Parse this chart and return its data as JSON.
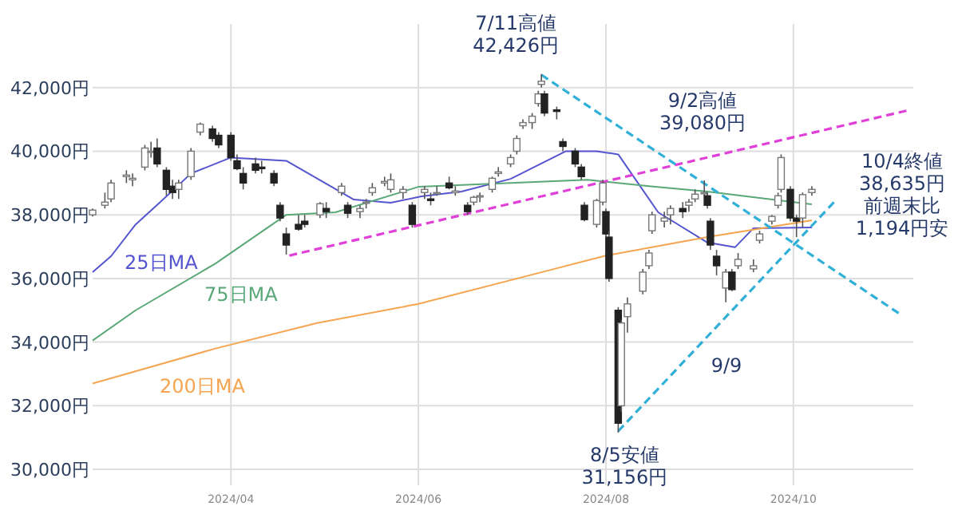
{
  "chart_data": {
    "type": "candlestick",
    "x": [
      "2024-02-16",
      "2024-02-20",
      "2024-02-22",
      "2024-02-27",
      "2024-02-29",
      "2024-03-04",
      "2024-03-06",
      "2024-03-08",
      "2024-03-11",
      "2024-03-13",
      "2024-03-15",
      "2024-03-19",
      "2024-03-22",
      "2024-03-26",
      "2024-03-28",
      "2024-04-01",
      "2024-04-03",
      "2024-04-05",
      "2024-04-09",
      "2024-04-11",
      "2024-04-15",
      "2024-04-17",
      "2024-04-19",
      "2024-04-23",
      "2024-04-25",
      "2024-04-30",
      "2024-05-02",
      "2024-05-07",
      "2024-05-09",
      "2024-05-13",
      "2024-05-15",
      "2024-05-17",
      "2024-05-21",
      "2024-05-23",
      "2024-05-27",
      "2024-05-30",
      "2024-06-03",
      "2024-06-05",
      "2024-06-07",
      "2024-06-11",
      "2024-06-13",
      "2024-06-17",
      "2024-06-19",
      "2024-06-21",
      "2024-06-25",
      "2024-06-27",
      "2024-07-01",
      "2024-07-03",
      "2024-07-05",
      "2024-07-08",
      "2024-07-10",
      "2024-07-11",
      "2024-07-12",
      "2024-07-16",
      "2024-07-18",
      "2024-07-22",
      "2024-07-24",
      "2024-07-25",
      "2024-07-29",
      "2024-07-31",
      "2024-08-01",
      "2024-08-02",
      "2024-08-05",
      "2024-08-06",
      "2024-08-08",
      "2024-08-13",
      "2024-08-15",
      "2024-08-16",
      "2024-08-20",
      "2024-08-22",
      "2024-08-26",
      "2024-08-28",
      "2024-08-30",
      "2024-09-02",
      "2024-09-03",
      "2024-09-04",
      "2024-09-06",
      "2024-09-09",
      "2024-09-11",
      "2024-09-13",
      "2024-09-18",
      "2024-09-20",
      "2024-09-24",
      "2024-09-26",
      "2024-09-27",
      "2024-09-30",
      "2024-10-02",
      "2024-10-04",
      "2024-10-07"
    ],
    "ohlc": [
      [
        38000,
        38200,
        37950,
        38150
      ],
      [
        38300,
        38700,
        38200,
        38400
      ],
      [
        38500,
        39100,
        38400,
        39000
      ],
      [
        39200,
        39400,
        39000,
        39250
      ],
      [
        39100,
        39300,
        38900,
        39150
      ],
      [
        39500,
        40200,
        39400,
        40100
      ],
      [
        40000,
        40300,
        39800,
        40000
      ],
      [
        40100,
        40400,
        39500,
        39600
      ],
      [
        39400,
        39500,
        38600,
        38800
      ],
      [
        38900,
        39100,
        38500,
        38700
      ],
      [
        38800,
        39100,
        38500,
        39000
      ],
      [
        39200,
        40100,
        39100,
        40000
      ],
      [
        40600,
        40900,
        40500,
        40850
      ],
      [
        40700,
        40800,
        40300,
        40400
      ],
      [
        40500,
        40600,
        40100,
        40200
      ],
      [
        40500,
        40600,
        39700,
        39800
      ],
      [
        39700,
        39900,
        39400,
        39450
      ],
      [
        39300,
        39500,
        38800,
        39000
      ],
      [
        39600,
        39800,
        39300,
        39400
      ],
      [
        39500,
        39700,
        39300,
        39450
      ],
      [
        39300,
        39400,
        38900,
        39000
      ],
      [
        38300,
        38400,
        37800,
        37900
      ],
      [
        37400,
        37600,
        36750,
        37050
      ],
      [
        37700,
        38000,
        37500,
        37550
      ],
      [
        37800,
        38000,
        37600,
        37700
      ],
      [
        38000,
        38400,
        37900,
        38350
      ],
      [
        38200,
        38400,
        37900,
        38100
      ],
      [
        38700,
        39000,
        38600,
        38900
      ],
      [
        38300,
        38400,
        37900,
        38050
      ],
      [
        38100,
        38300,
        37900,
        38200
      ],
      [
        38400,
        38500,
        38200,
        38400
      ],
      [
        38700,
        39000,
        38600,
        38850
      ],
      [
        39000,
        39200,
        38900,
        39050
      ],
      [
        38800,
        39300,
        38700,
        39100
      ],
      [
        38700,
        38900,
        38500,
        38800
      ],
      [
        38300,
        38400,
        37600,
        37700
      ],
      [
        38700,
        38900,
        38500,
        38800
      ],
      [
        38500,
        38700,
        38300,
        38450
      ],
      [
        38700,
        38900,
        38600,
        38700
      ],
      [
        39000,
        39200,
        38800,
        38850
      ],
      [
        38700,
        38900,
        38600,
        38750
      ],
      [
        38300,
        38400,
        38000,
        38100
      ],
      [
        38400,
        38600,
        38300,
        38550
      ],
      [
        38600,
        38700,
        38400,
        38600
      ],
      [
        38800,
        39200,
        38700,
        39150
      ],
      [
        39300,
        39500,
        39200,
        39350
      ],
      [
        39600,
        39900,
        39500,
        39800
      ],
      [
        40000,
        40500,
        39900,
        40400
      ],
      [
        40800,
        41000,
        40700,
        40900
      ],
      [
        40900,
        41200,
        40700,
        41100
      ],
      [
        41500,
        41900,
        41400,
        41800
      ],
      [
        42100,
        42426,
        42000,
        42200
      ],
      [
        41800,
        41900,
        41100,
        41200
      ],
      [
        41300,
        41400,
        41000,
        41250
      ],
      [
        40300,
        40400,
        40000,
        40150
      ],
      [
        40000,
        40100,
        39500,
        39600
      ],
      [
        39500,
        39600,
        39100,
        39200
      ],
      [
        38300,
        38400,
        37800,
        37850
      ],
      [
        37700,
        38500,
        37600,
        38450
      ],
      [
        38400,
        39100,
        38300,
        39000
      ],
      [
        38100,
        38200,
        37300,
        37400
      ],
      [
        37300,
        37500,
        35900,
        36000
      ],
      [
        35000,
        35100,
        31156,
        31450
      ],
      [
        32000,
        34700,
        31800,
        34600
      ],
      [
        34800,
        35400,
        34300,
        35200
      ],
      [
        35600,
        36300,
        35500,
        36200
      ],
      [
        36400,
        36900,
        36300,
        36800
      ],
      [
        37500,
        38100,
        37400,
        38000
      ],
      [
        37800,
        38100,
        37600,
        37900
      ],
      [
        38000,
        38300,
        37700,
        38200
      ],
      [
        38200,
        38400,
        37900,
        38100
      ],
      [
        38300,
        38500,
        38100,
        38400
      ],
      [
        38500,
        38800,
        38400,
        38650
      ],
      [
        38700,
        39080,
        38600,
        38700
      ],
      [
        38600,
        38700,
        38200,
        38300
      ],
      [
        37800,
        37900,
        36900,
        37050
      ],
      [
        36700,
        36900,
        36100,
        36400
      ],
      [
        35700,
        36300,
        35250,
        36200
      ],
      [
        36200,
        36300,
        35600,
        35650
      ],
      [
        36400,
        36800,
        36300,
        36600
      ],
      [
        36300,
        36600,
        36200,
        36400
      ],
      [
        37200,
        37500,
        37100,
        37400
      ],
      [
        37800,
        38000,
        37700,
        37950
      ],
      [
        38300,
        38700,
        38200,
        38600
      ],
      [
        38800,
        39900,
        38700,
        39800
      ],
      [
        38800,
        38900,
        37800,
        37900
      ],
      [
        37900,
        38000,
        37300,
        37800
      ],
      [
        37900,
        38700,
        37600,
        38635
      ],
      [
        38700,
        38900,
        38600,
        38800
      ]
    ],
    "series": [
      {
        "type": "line",
        "name": "25日MA",
        "color": "#5555d0",
        "x": [
          "2024-02-16",
          "2024-02-22",
          "2024-03-01",
          "2024-03-09",
          "2024-03-19",
          "2024-04-01",
          "2024-04-19",
          "2024-05-11",
          "2024-05-23",
          "2024-06-02",
          "2024-06-15",
          "2024-07-01",
          "2024-07-19",
          "2024-07-29",
          "2024-08-05",
          "2024-08-18",
          "2024-09-03",
          "2024-09-12",
          "2024-09-18",
          "2024-10-07"
        ],
        "values": [
          36200,
          36700,
          37700,
          38400,
          39300,
          39800,
          39700,
          38480,
          38380,
          38580,
          38730,
          39130,
          40000,
          40000,
          39900,
          38080,
          37130,
          36980,
          37580,
          37600
        ]
      },
      {
        "type": "line",
        "name": "75日MA",
        "color": "#5aa878",
        "x": [
          "2024-02-16",
          "2024-03-01",
          "2024-03-27",
          "2024-04-19",
          "2024-05-05",
          "2024-06-01",
          "2024-07-01",
          "2024-07-26",
          "2024-08-15",
          "2024-09-03",
          "2024-10-07"
        ],
        "values": [
          34050,
          35000,
          36470,
          38000,
          38080,
          38880,
          39000,
          39100,
          38900,
          38730,
          38330
        ]
      },
      {
        "type": "line",
        "name": "200日MA",
        "color": "#f5a550",
        "x": [
          "2024-02-16",
          "2024-03-27",
          "2024-04-29",
          "2024-06-01",
          "2024-07-12",
          "2024-08-01",
          "2024-09-03",
          "2024-10-07"
        ],
        "values": [
          32700,
          33800,
          34600,
          35200,
          36220,
          36720,
          37300,
          37830
        ]
      },
      {
        "type": "line",
        "color": "#e040d8",
        "line_style": "dashed",
        "x": [
          "2024-04-20",
          "2024-11-08"
        ],
        "values": [
          36720,
          41300
        ]
      },
      {
        "type": "line",
        "color": "#30b0d8",
        "line_style": "dashed",
        "x": [
          "2024-07-11",
          "2024-11-05"
        ],
        "values": [
          42400,
          34860
        ]
      },
      {
        "type": "line",
        "color": "#30b0d8",
        "line_style": "dashed",
        "x": [
          "2024-08-05",
          "2024-10-15"
        ],
        "values": [
          31200,
          38480
        ]
      }
    ],
    "xlim": [
      "2024-02-16",
      "2024-11-09"
    ],
    "ylim": [
      29500,
      44000
    ],
    "xticks": [
      {
        "value": "2024-04",
        "label": "2024/04"
      },
      {
        "value": "2024-06",
        "label": "2024/06"
      },
      {
        "value": "2024-08",
        "label": "2024/08"
      },
      {
        "value": "2024-10",
        "label": "2024/10"
      }
    ],
    "yticks": [
      {
        "value": 30000,
        "label": "30,000円"
      },
      {
        "value": 32000,
        "label": "32,000円"
      },
      {
        "value": 34000,
        "label": "34,000円"
      },
      {
        "value": 36000,
        "label": "36,000円"
      },
      {
        "value": 38000,
        "label": "38,000円"
      },
      {
        "value": 40000,
        "label": "40,000円"
      },
      {
        "value": 42000,
        "label": "42,000円"
      }
    ],
    "grid": true,
    "annotations": [
      {
        "text": "7/11高値42,426円",
        "x": "2024-07-11",
        "y": 42426
      },
      "9/2高値39,080円",
      "10/4終値38,635円前週末比1,194円安",
      "9/9",
      {
        "text": "8/5安値31,156円",
        "x": "2024-08-05",
        "y": 31156
      }
    ]
  }
}
